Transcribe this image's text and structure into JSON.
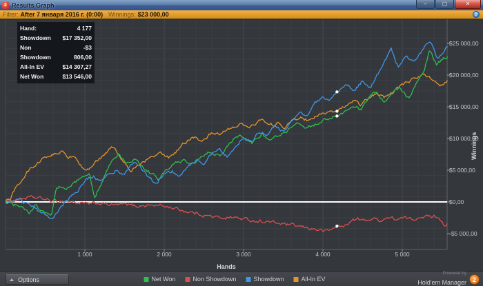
{
  "window": {
    "title": "Results Graph",
    "app_icon_label": "2",
    "controls": {
      "minimize": "–",
      "maximize": "▢",
      "close": "✕"
    }
  },
  "filter_bar": {
    "filter_label": "Filter:",
    "filter_value": "After 7 января 2016 г. (0:00)",
    "winnings_label": "Winnings:",
    "winnings_value": "$23 000,00",
    "help_icon": "?"
  },
  "info_box": {
    "rows": [
      {
        "label": "Hand:",
        "value": "4 177"
      },
      {
        "label": "Showdown",
        "value": "$17 352,00"
      },
      {
        "label": "Non Showdown",
        "value": "-$3 806,00"
      },
      {
        "label": "All-In EV",
        "value": "$14 307,27"
      },
      {
        "label": "Net Won",
        "value": "$13 546,00"
      }
    ]
  },
  "chart_data": {
    "type": "line",
    "title": "Results Graph",
    "xlabel": "Hands",
    "ylabel": "Winnings",
    "xlim": [
      0,
      5565
    ],
    "ylim": [
      -7500,
      28800
    ],
    "grid": {
      "x_minor_step": 200,
      "x_major_step": 1000,
      "y_major_step": 5000,
      "y_minor_divisions": 3,
      "zero_line": 0
    },
    "x_ticks": [
      {
        "value": 1000,
        "label": "1 000"
      },
      {
        "value": 2000,
        "label": "2 000"
      },
      {
        "value": 3000,
        "label": "3 000"
      },
      {
        "value": 4000,
        "label": "4 000"
      },
      {
        "value": 5000,
        "label": "5 000"
      }
    ],
    "y_ticks": [
      {
        "value": 25000,
        "label": "$25 000,00"
      },
      {
        "value": 20000,
        "label": "$20 000,00"
      },
      {
        "value": 15000,
        "label": "$15 000,00"
      },
      {
        "value": 10000,
        "label": "$10 000,00"
      },
      {
        "value": 5000,
        "label": "$5 000,00"
      },
      {
        "value": 0,
        "label": "$0,00"
      },
      {
        "value": -5000,
        "label": "-$5 000,00"
      }
    ],
    "hover": {
      "hand": 4177,
      "values": {
        "Showdown": 17352,
        "Non Showdown": -3806,
        "All-In EV": 14307.27,
        "Net Won": 13546
      }
    },
    "jitter": 450,
    "series": [
      {
        "name": "Non Showdown",
        "color": "#d9504e",
        "points": [
          [
            0,
            0
          ],
          [
            150,
            400
          ],
          [
            300,
            700
          ],
          [
            452,
            550
          ],
          [
            600,
            100
          ],
          [
            757,
            150
          ],
          [
            900,
            -100
          ],
          [
            1050,
            -350
          ],
          [
            1200,
            -200
          ],
          [
            1350,
            -500
          ],
          [
            1500,
            -400
          ],
          [
            1650,
            -650
          ],
          [
            1800,
            -500
          ],
          [
            1974,
            -600
          ],
          [
            2100,
            -900
          ],
          [
            2250,
            -1400
          ],
          [
            2400,
            -1800
          ],
          [
            2550,
            -2200
          ],
          [
            2700,
            -2500
          ],
          [
            2850,
            -2400
          ],
          [
            3000,
            -2700
          ],
          [
            3150,
            -3000
          ],
          [
            3300,
            -3100
          ],
          [
            3450,
            -3400
          ],
          [
            3600,
            -3700
          ],
          [
            3750,
            -4000
          ],
          [
            3900,
            -4300
          ],
          [
            4020,
            -4600
          ],
          [
            4100,
            -4400
          ],
          [
            4177,
            -3806
          ],
          [
            4260,
            -3950
          ],
          [
            4340,
            -3100
          ],
          [
            4430,
            -2700
          ],
          [
            4520,
            -3000
          ],
          [
            4620,
            -2600
          ],
          [
            4720,
            -2900
          ],
          [
            4820,
            -2500
          ],
          [
            4930,
            -2750
          ],
          [
            5040,
            -2550
          ],
          [
            5140,
            -2800
          ],
          [
            5240,
            -2150
          ],
          [
            5330,
            -2350
          ],
          [
            5420,
            -2200
          ],
          [
            5480,
            -2600
          ],
          [
            5530,
            -3700
          ],
          [
            5565,
            -3400
          ]
        ]
      },
      {
        "name": "All-In EV",
        "color": "#e2952f",
        "points": [
          [
            0,
            0
          ],
          [
            60,
            400
          ],
          [
            130,
            2400
          ],
          [
            200,
            3300
          ],
          [
            270,
            4600
          ],
          [
            340,
            5500
          ],
          [
            420,
            6300
          ],
          [
            500,
            7000
          ],
          [
            580,
            7400
          ],
          [
            650,
            7700
          ],
          [
            713,
            7900
          ],
          [
            780,
            6800
          ],
          [
            850,
            7500
          ],
          [
            920,
            6300
          ],
          [
            1000,
            4800
          ],
          [
            1080,
            5600
          ],
          [
            1170,
            6500
          ],
          [
            1260,
            7600
          ],
          [
            1340,
            8700
          ],
          [
            1420,
            7600
          ],
          [
            1500,
            6200
          ],
          [
            1570,
            4900
          ],
          [
            1650,
            5600
          ],
          [
            1730,
            6200
          ],
          [
            1810,
            6800
          ],
          [
            1890,
            7300
          ],
          [
            1974,
            7700
          ],
          [
            2060,
            7000
          ],
          [
            2140,
            7800
          ],
          [
            2220,
            9000
          ],
          [
            2300,
            9700
          ],
          [
            2380,
            10300
          ],
          [
            2460,
            9600
          ],
          [
            2540,
            10300
          ],
          [
            2620,
            11000
          ],
          [
            2700,
            10400
          ],
          [
            2790,
            11300
          ],
          [
            2880,
            11900
          ],
          [
            2960,
            12500
          ],
          [
            3050,
            11700
          ],
          [
            3140,
            12400
          ],
          [
            3230,
            13100
          ],
          [
            3320,
            11900
          ],
          [
            3420,
            12400
          ],
          [
            3520,
            11800
          ],
          [
            3620,
            12800
          ],
          [
            3720,
            13300
          ],
          [
            3820,
            12800
          ],
          [
            3920,
            13600
          ],
          [
            4040,
            13900
          ],
          [
            4177,
            14307
          ],
          [
            4280,
            15000
          ],
          [
            4380,
            15800
          ],
          [
            4480,
            15300
          ],
          [
            4580,
            16300
          ],
          [
            4680,
            17100
          ],
          [
            4780,
            16500
          ],
          [
            4880,
            17400
          ],
          [
            4980,
            18200
          ],
          [
            5080,
            19000
          ],
          [
            5180,
            19700
          ],
          [
            5280,
            20100
          ],
          [
            5380,
            19300
          ],
          [
            5480,
            18600
          ],
          [
            5565,
            19200
          ]
        ]
      },
      {
        "name": "Net Won",
        "color": "#2fbe4f",
        "points": [
          [
            0,
            0
          ],
          [
            150,
            -600
          ],
          [
            300,
            -1700
          ],
          [
            380,
            -700
          ],
          [
            470,
            -1500
          ],
          [
            580,
            -2100
          ],
          [
            640,
            2300
          ],
          [
            700,
            2600
          ],
          [
            760,
            1800
          ],
          [
            820,
            2700
          ],
          [
            880,
            3100
          ],
          [
            950,
            3900
          ],
          [
            1020,
            4500
          ],
          [
            1060,
            4700
          ],
          [
            1122,
            400
          ],
          [
            1180,
            2200
          ],
          [
            1230,
            3500
          ],
          [
            1320,
            5800
          ],
          [
            1420,
            7400
          ],
          [
            1520,
            6300
          ],
          [
            1620,
            6800
          ],
          [
            1720,
            5600
          ],
          [
            1830,
            4500
          ],
          [
            1930,
            3600
          ],
          [
            2030,
            5000
          ],
          [
            2130,
            6100
          ],
          [
            2250,
            6500
          ],
          [
            2350,
            5800
          ],
          [
            2450,
            7000
          ],
          [
            2580,
            7900
          ],
          [
            2700,
            7300
          ],
          [
            2800,
            8700
          ],
          [
            2890,
            10100
          ],
          [
            2990,
            10400
          ],
          [
            3100,
            9300
          ],
          [
            3230,
            10700
          ],
          [
            3330,
            9800
          ],
          [
            3450,
            10400
          ],
          [
            3570,
            11400
          ],
          [
            3700,
            12300
          ],
          [
            3800,
            11700
          ],
          [
            3930,
            12400
          ],
          [
            4050,
            13000
          ],
          [
            4177,
            13546
          ],
          [
            4300,
            14500
          ],
          [
            4400,
            15100
          ],
          [
            4480,
            14500
          ],
          [
            4600,
            16900
          ],
          [
            4680,
            17400
          ],
          [
            4780,
            15700
          ],
          [
            4900,
            17600
          ],
          [
            4980,
            17900
          ],
          [
            5080,
            16400
          ],
          [
            5180,
            18800
          ],
          [
            5280,
            20800
          ],
          [
            5345,
            24100
          ],
          [
            5430,
            21700
          ],
          [
            5500,
            22300
          ],
          [
            5565,
            23000
          ]
        ]
      },
      {
        "name": "Showdown",
        "color": "#3e97e8",
        "points": [
          [
            0,
            0
          ],
          [
            150,
            400
          ],
          [
            300,
            -600
          ],
          [
            450,
            -1600
          ],
          [
            570,
            -2700
          ],
          [
            700,
            -900
          ],
          [
            800,
            600
          ],
          [
            900,
            1600
          ],
          [
            1000,
            3300
          ],
          [
            1100,
            4100
          ],
          [
            1200,
            3400
          ],
          [
            1300,
            4300
          ],
          [
            1400,
            5000
          ],
          [
            1500,
            4400
          ],
          [
            1630,
            6400
          ],
          [
            1720,
            5200
          ],
          [
            1800,
            3900
          ],
          [
            1900,
            2800
          ],
          [
            2000,
            4400
          ],
          [
            2100,
            4800
          ],
          [
            2200,
            4200
          ],
          [
            2300,
            5600
          ],
          [
            2400,
            6600
          ],
          [
            2500,
            6100
          ],
          [
            2600,
            7600
          ],
          [
            2700,
            8100
          ],
          [
            2800,
            7100
          ],
          [
            2900,
            8600
          ],
          [
            3000,
            10100
          ],
          [
            3100,
            9500
          ],
          [
            3200,
            11100
          ],
          [
            3300,
            10600
          ],
          [
            3400,
            12100
          ],
          [
            3500,
            11100
          ],
          [
            3600,
            12600
          ],
          [
            3700,
            14100
          ],
          [
            3800,
            13600
          ],
          [
            3900,
            15600
          ],
          [
            4000,
            16600
          ],
          [
            4100,
            16100
          ],
          [
            4177,
            17352
          ],
          [
            4300,
            18600
          ],
          [
            4400,
            17600
          ],
          [
            4500,
            19100
          ],
          [
            4600,
            18100
          ],
          [
            4700,
            20300
          ],
          [
            4800,
            22400
          ],
          [
            4860,
            24100
          ],
          [
            4950,
            21300
          ],
          [
            5050,
            23100
          ],
          [
            5150,
            22100
          ],
          [
            5250,
            23800
          ],
          [
            5348,
            25500
          ],
          [
            5452,
            22500
          ],
          [
            5510,
            23600
          ],
          [
            5565,
            24600
          ]
        ]
      }
    ]
  },
  "bottom_bar": {
    "options_label": "Options",
    "legend": [
      {
        "label": "Net Won",
        "color": "#2fbe4f"
      },
      {
        "label": "Non Showdown",
        "color": "#d9504e"
      },
      {
        "label": "Showdown",
        "color": "#3e97e8"
      },
      {
        "label": "All-In EV",
        "color": "#e2952f"
      }
    ],
    "powered_by": "Powered by",
    "brand": "Hold'em Manager",
    "brand_badge": "2"
  },
  "colors": {
    "chart_bg": "#34373c",
    "grid_minor": "#3c3f45",
    "grid_major": "#474a50",
    "frame": "#60646b",
    "zero_line": "#ffffff",
    "marker": "#ffffff",
    "filter_bar": "#e09a28",
    "title_bar": "#4a6d9e"
  }
}
